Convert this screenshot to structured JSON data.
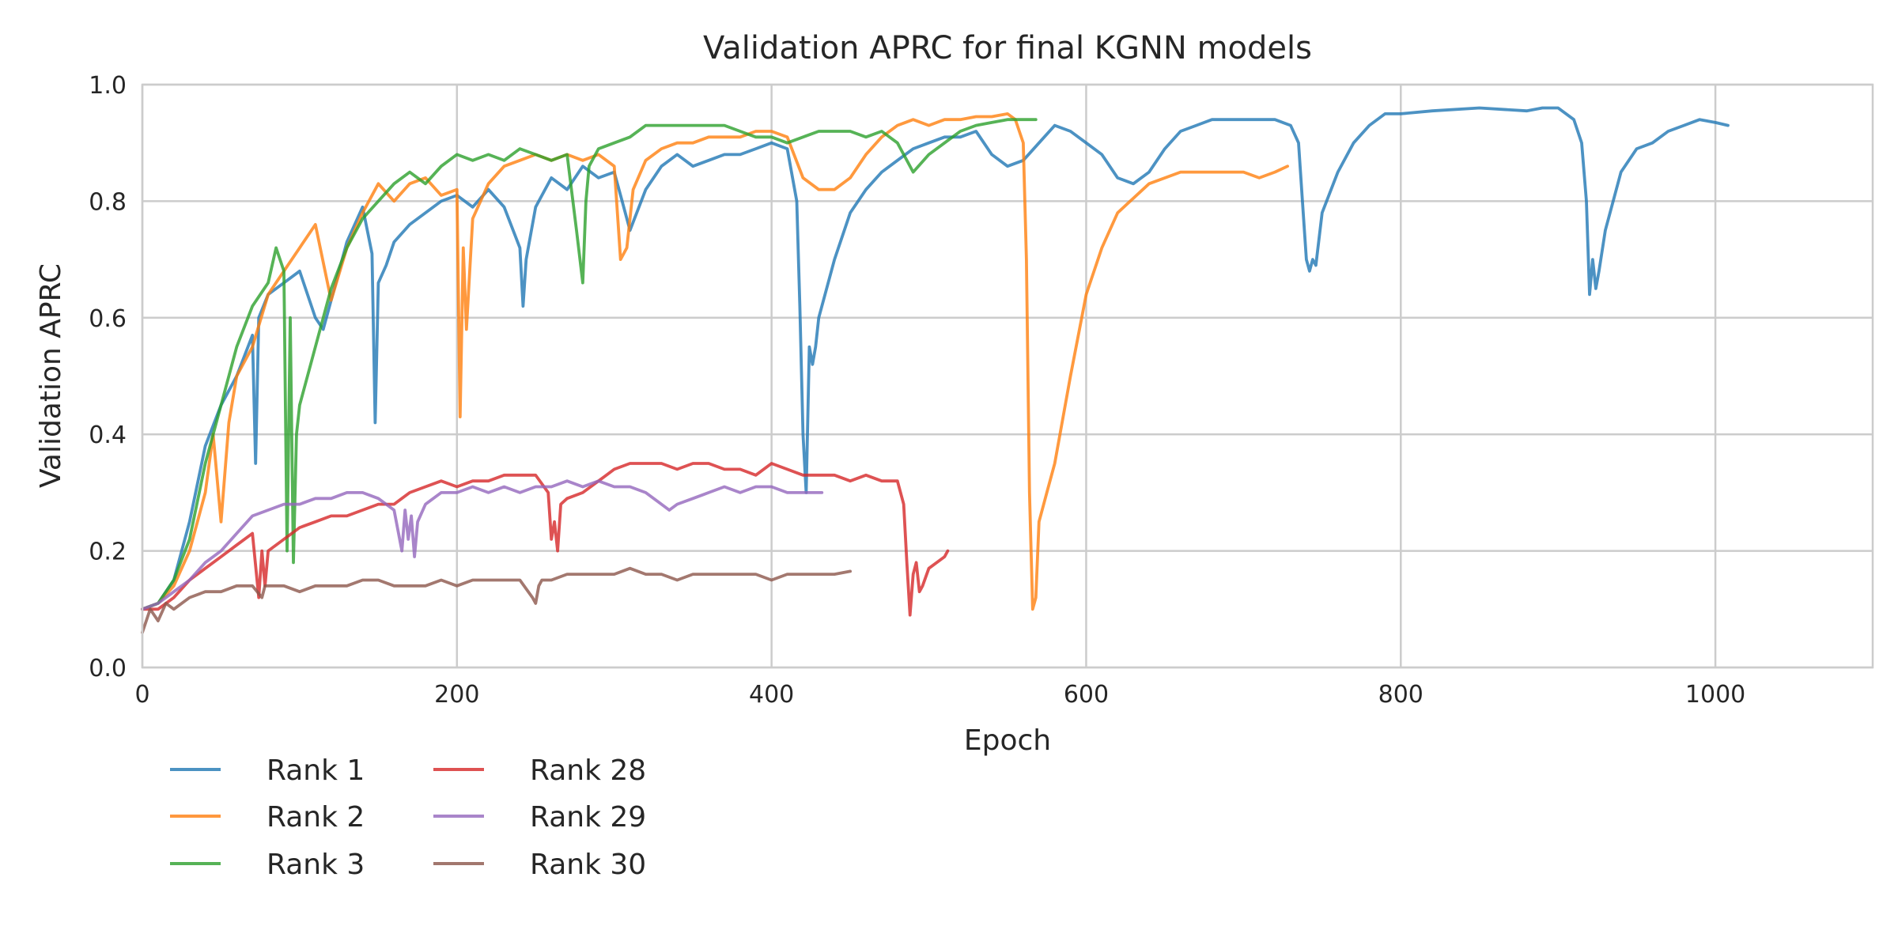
{
  "chart_data": {
    "type": "line",
    "title": "Validation APRC for final KGNN models",
    "xlabel": "Epoch",
    "ylabel": "Validation APRC",
    "xlim": [
      0,
      1100
    ],
    "ylim": [
      0.0,
      1.0
    ],
    "xticks": [
      0,
      200,
      400,
      600,
      800,
      1000
    ],
    "yticks": [
      0.0,
      0.2,
      0.4,
      0.6,
      0.8,
      1.0
    ],
    "xtick_labels": [
      "0",
      "200",
      "400",
      "600",
      "800",
      "1000"
    ],
    "ytick_labels": [
      "0.0",
      "0.2",
      "0.4",
      "0.6",
      "0.8",
      "1.0"
    ],
    "grid": true,
    "legend": {
      "position": "bottom-left",
      "columns": 2
    },
    "series": [
      {
        "name": "Rank 1",
        "color": "#1f77b4",
        "x": [
          0,
          10,
          20,
          30,
          40,
          50,
          60,
          70,
          72,
          74,
          80,
          90,
          100,
          110,
          115,
          120,
          130,
          140,
          146,
          148,
          150,
          155,
          160,
          170,
          180,
          190,
          200,
          210,
          220,
          230,
          240,
          242,
          244,
          250,
          260,
          270,
          280,
          290,
          300,
          305,
          310,
          320,
          330,
          340,
          350,
          360,
          370,
          380,
          390,
          400,
          410,
          416,
          418,
          420,
          422,
          424,
          426,
          428,
          430,
          440,
          450,
          460,
          470,
          480,
          490,
          500,
          510,
          520,
          530,
          540,
          550,
          560,
          570,
          580,
          590,
          600,
          610,
          620,
          630,
          640,
          650,
          660,
          670,
          680,
          690,
          700,
          710,
          720,
          730,
          735,
          738,
          740,
          742,
          744,
          746,
          750,
          760,
          770,
          780,
          790,
          800,
          820,
          850,
          880,
          890,
          900,
          910,
          915,
          918,
          920,
          922,
          924,
          926,
          930,
          940,
          950,
          960,
          970,
          980,
          990,
          1000,
          1008
        ],
        "y": [
          0.1,
          0.11,
          0.15,
          0.25,
          0.38,
          0.45,
          0.5,
          0.57,
          0.35,
          0.6,
          0.64,
          0.66,
          0.68,
          0.6,
          0.58,
          0.63,
          0.73,
          0.79,
          0.71,
          0.42,
          0.66,
          0.69,
          0.73,
          0.76,
          0.78,
          0.8,
          0.81,
          0.79,
          0.82,
          0.79,
          0.72,
          0.62,
          0.7,
          0.79,
          0.84,
          0.82,
          0.86,
          0.84,
          0.85,
          0.8,
          0.75,
          0.82,
          0.86,
          0.88,
          0.86,
          0.87,
          0.88,
          0.88,
          0.89,
          0.9,
          0.89,
          0.8,
          0.62,
          0.4,
          0.3,
          0.55,
          0.52,
          0.55,
          0.6,
          0.7,
          0.78,
          0.82,
          0.85,
          0.87,
          0.89,
          0.9,
          0.91,
          0.91,
          0.92,
          0.88,
          0.86,
          0.87,
          0.9,
          0.93,
          0.92,
          0.9,
          0.88,
          0.84,
          0.83,
          0.85,
          0.89,
          0.92,
          0.93,
          0.94,
          0.94,
          0.94,
          0.94,
          0.94,
          0.93,
          0.9,
          0.78,
          0.7,
          0.68,
          0.7,
          0.69,
          0.78,
          0.85,
          0.9,
          0.93,
          0.95,
          0.95,
          0.955,
          0.96,
          0.955,
          0.96,
          0.96,
          0.94,
          0.9,
          0.8,
          0.64,
          0.7,
          0.65,
          0.68,
          0.75,
          0.85,
          0.89,
          0.9,
          0.92,
          0.93,
          0.94,
          0.935,
          0.93
        ]
      },
      {
        "name": "Rank 2",
        "color": "#ff7f0e",
        "x": [
          0,
          10,
          20,
          30,
          40,
          45,
          50,
          55,
          60,
          70,
          80,
          90,
          100,
          110,
          120,
          130,
          140,
          150,
          160,
          170,
          180,
          190,
          200,
          202,
          204,
          206,
          210,
          220,
          230,
          240,
          250,
          260,
          270,
          280,
          290,
          300,
          304,
          308,
          312,
          320,
          330,
          340,
          350,
          360,
          370,
          380,
          390,
          400,
          410,
          420,
          430,
          440,
          450,
          460,
          470,
          480,
          490,
          500,
          510,
          520,
          530,
          540,
          550,
          555,
          560,
          562,
          564,
          566,
          568,
          570,
          575,
          580,
          590,
          600,
          610,
          620,
          640,
          660,
          680,
          700,
          710,
          720,
          728
        ],
        "y": [
          0.1,
          0.11,
          0.14,
          0.2,
          0.3,
          0.4,
          0.25,
          0.42,
          0.5,
          0.55,
          0.64,
          0.68,
          0.72,
          0.76,
          0.63,
          0.72,
          0.78,
          0.83,
          0.8,
          0.83,
          0.84,
          0.81,
          0.82,
          0.43,
          0.72,
          0.58,
          0.77,
          0.83,
          0.86,
          0.87,
          0.88,
          0.87,
          0.88,
          0.87,
          0.88,
          0.86,
          0.7,
          0.72,
          0.82,
          0.87,
          0.89,
          0.9,
          0.9,
          0.91,
          0.91,
          0.91,
          0.92,
          0.92,
          0.91,
          0.84,
          0.82,
          0.82,
          0.84,
          0.88,
          0.91,
          0.93,
          0.94,
          0.93,
          0.94,
          0.94,
          0.945,
          0.945,
          0.95,
          0.94,
          0.9,
          0.7,
          0.3,
          0.1,
          0.12,
          0.25,
          0.3,
          0.35,
          0.5,
          0.64,
          0.72,
          0.78,
          0.83,
          0.85,
          0.85,
          0.85,
          0.84,
          0.85,
          0.86
        ]
      },
      {
        "name": "Rank 3",
        "color": "#2ca02c",
        "x": [
          0,
          10,
          20,
          30,
          40,
          50,
          60,
          70,
          80,
          85,
          90,
          92,
          94,
          96,
          98,
          100,
          110,
          120,
          130,
          140,
          150,
          160,
          170,
          180,
          190,
          200,
          210,
          220,
          230,
          240,
          250,
          260,
          270,
          276,
          280,
          282,
          284,
          290,
          300,
          310,
          320,
          330,
          340,
          350,
          360,
          370,
          380,
          390,
          400,
          410,
          420,
          430,
          440,
          450,
          460,
          470,
          480,
          490,
          500,
          510,
          520,
          530,
          540,
          550,
          560,
          568
        ],
        "y": [
          0.1,
          0.11,
          0.15,
          0.22,
          0.35,
          0.45,
          0.55,
          0.62,
          0.66,
          0.72,
          0.68,
          0.2,
          0.6,
          0.18,
          0.4,
          0.45,
          0.55,
          0.65,
          0.72,
          0.77,
          0.8,
          0.83,
          0.85,
          0.83,
          0.86,
          0.88,
          0.87,
          0.88,
          0.87,
          0.89,
          0.88,
          0.87,
          0.88,
          0.75,
          0.66,
          0.8,
          0.86,
          0.89,
          0.9,
          0.91,
          0.93,
          0.93,
          0.93,
          0.93,
          0.93,
          0.93,
          0.92,
          0.91,
          0.91,
          0.9,
          0.91,
          0.92,
          0.92,
          0.92,
          0.91,
          0.92,
          0.9,
          0.85,
          0.88,
          0.9,
          0.92,
          0.93,
          0.935,
          0.94,
          0.94,
          0.94
        ]
      },
      {
        "name": "Rank 28",
        "color": "#d62728",
        "x": [
          0,
          10,
          20,
          30,
          40,
          50,
          60,
          70,
          74,
          76,
          78,
          80,
          90,
          100,
          110,
          120,
          130,
          140,
          150,
          160,
          170,
          180,
          190,
          200,
          210,
          220,
          230,
          240,
          250,
          258,
          260,
          262,
          264,
          266,
          270,
          280,
          290,
          300,
          310,
          320,
          330,
          340,
          350,
          360,
          370,
          380,
          390,
          400,
          410,
          420,
          430,
          440,
          450,
          460,
          470,
          480,
          484,
          486,
          488,
          490,
          492,
          494,
          496,
          500,
          510,
          512
        ],
        "y": [
          0.1,
          0.1,
          0.12,
          0.15,
          0.17,
          0.19,
          0.21,
          0.23,
          0.12,
          0.2,
          0.14,
          0.2,
          0.22,
          0.24,
          0.25,
          0.26,
          0.26,
          0.27,
          0.28,
          0.28,
          0.3,
          0.31,
          0.32,
          0.31,
          0.32,
          0.32,
          0.33,
          0.33,
          0.33,
          0.3,
          0.22,
          0.25,
          0.2,
          0.28,
          0.29,
          0.3,
          0.32,
          0.34,
          0.35,
          0.35,
          0.35,
          0.34,
          0.35,
          0.35,
          0.34,
          0.34,
          0.33,
          0.35,
          0.34,
          0.33,
          0.33,
          0.33,
          0.32,
          0.33,
          0.32,
          0.32,
          0.28,
          0.18,
          0.09,
          0.16,
          0.18,
          0.13,
          0.14,
          0.17,
          0.19,
          0.2
        ]
      },
      {
        "name": "Rank 29",
        "color": "#9467bd",
        "x": [
          0,
          10,
          20,
          30,
          40,
          50,
          60,
          70,
          80,
          90,
          100,
          110,
          120,
          130,
          140,
          150,
          160,
          165,
          167,
          169,
          171,
          173,
          175,
          180,
          190,
          200,
          210,
          220,
          230,
          240,
          250,
          260,
          270,
          280,
          290,
          300,
          310,
          320,
          330,
          335,
          340,
          350,
          360,
          370,
          380,
          390,
          400,
          410,
          420,
          430,
          432
        ],
        "y": [
          0.1,
          0.11,
          0.13,
          0.15,
          0.18,
          0.2,
          0.23,
          0.26,
          0.27,
          0.28,
          0.28,
          0.29,
          0.29,
          0.3,
          0.3,
          0.29,
          0.27,
          0.2,
          0.27,
          0.22,
          0.26,
          0.19,
          0.25,
          0.28,
          0.3,
          0.3,
          0.31,
          0.3,
          0.31,
          0.3,
          0.31,
          0.31,
          0.32,
          0.31,
          0.32,
          0.31,
          0.31,
          0.3,
          0.28,
          0.27,
          0.28,
          0.29,
          0.3,
          0.31,
          0.3,
          0.31,
          0.31,
          0.3,
          0.3,
          0.3,
          0.3
        ]
      },
      {
        "name": "Rank 30",
        "color": "#8c564b",
        "x": [
          0,
          5,
          10,
          15,
          20,
          30,
          40,
          50,
          60,
          70,
          76,
          78,
          80,
          90,
          100,
          110,
          120,
          130,
          140,
          150,
          160,
          170,
          180,
          190,
          200,
          210,
          220,
          230,
          240,
          248,
          250,
          252,
          254,
          260,
          270,
          280,
          290,
          300,
          310,
          320,
          330,
          340,
          350,
          360,
          370,
          380,
          390,
          400,
          410,
          420,
          430,
          440,
          450
        ],
        "y": [
          0.06,
          0.1,
          0.08,
          0.11,
          0.1,
          0.12,
          0.13,
          0.13,
          0.14,
          0.14,
          0.12,
          0.14,
          0.14,
          0.14,
          0.13,
          0.14,
          0.14,
          0.14,
          0.15,
          0.15,
          0.14,
          0.14,
          0.14,
          0.15,
          0.14,
          0.15,
          0.15,
          0.15,
          0.15,
          0.12,
          0.11,
          0.14,
          0.15,
          0.15,
          0.16,
          0.16,
          0.16,
          0.16,
          0.17,
          0.16,
          0.16,
          0.15,
          0.16,
          0.16,
          0.16,
          0.16,
          0.16,
          0.15,
          0.16,
          0.16,
          0.16,
          0.16,
          0.165
        ]
      }
    ]
  }
}
